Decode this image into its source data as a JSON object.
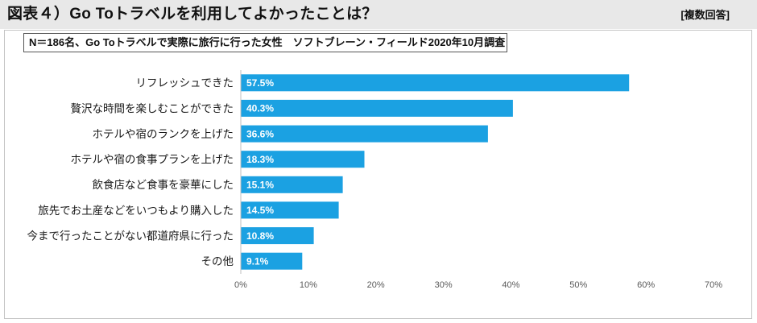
{
  "chart_data": {
    "type": "bar",
    "orientation": "horizontal",
    "title": "図表４）Go Toトラベルを利用してよかったことは？",
    "answer_type": "[複数回答]",
    "note": "N＝186名、Go Toトラベルで実際に旅行に行った女性　ソフトブレーン・フィールド2020年10月調査",
    "categories": [
      "リフレッシュできた",
      "贅沢な時間を楽しむことができた",
      "ホテルや宿のランクを上げた",
      "ホテルや宿の食事プランを上げた",
      "飲食店など食事を豪華にした",
      "旅先でお土産などをいつもより購入した",
      "今まで行ったことがない都道府県に行った",
      "その他"
    ],
    "values": [
      57.5,
      40.3,
      36.6,
      18.3,
      15.1,
      14.5,
      10.8,
      9.1
    ],
    "value_labels": [
      "57.5%",
      "40.3%",
      "36.6%",
      "18.3%",
      "15.1%",
      "14.5%",
      "10.8%",
      "9.1%"
    ],
    "xlim": [
      0,
      70
    ],
    "xticks": [
      0,
      10,
      20,
      30,
      40,
      50,
      60,
      70
    ],
    "xtick_labels": [
      "0%",
      "10%",
      "20%",
      "30%",
      "40%",
      "50%",
      "60%",
      "70%"
    ],
    "grid": false,
    "legend": false,
    "bar_color": "#1ba1e2",
    "value_label_color": "#ffffff"
  },
  "colors": {
    "header_background": "#e8e8e8",
    "axis_line": "#bfbfbf"
  }
}
